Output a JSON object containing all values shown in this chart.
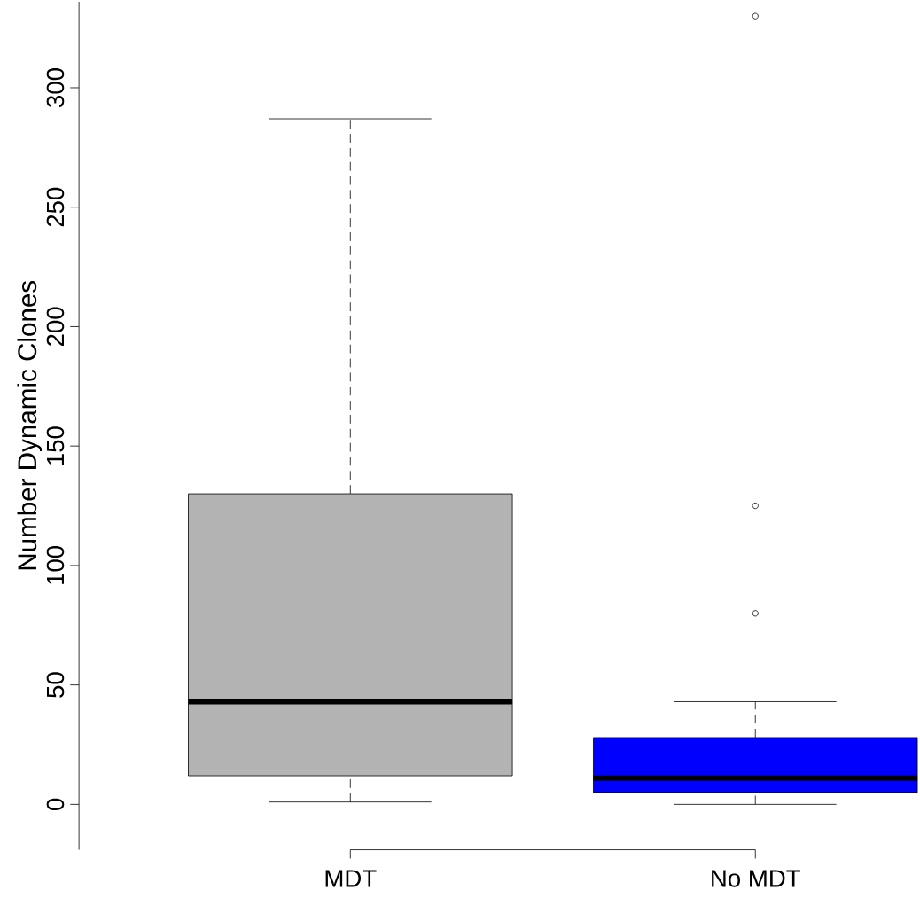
{
  "chart_data": {
    "type": "box",
    "ylabel": "Number Dynamic Clones",
    "categories": [
      "MDT",
      "No MDT"
    ],
    "boxes": [
      {
        "low": 1,
        "q1": 12,
        "median": 43,
        "q3": 130,
        "high": 287
      },
      {
        "low": 0,
        "q1": 5,
        "median": 11,
        "q3": 28,
        "high": 43,
        "outliers": [
          80,
          125,
          330
        ]
      }
    ],
    "colors": [
      "#b3b3b3",
      "#0000ff"
    ],
    "ylim": [
      -19,
      336
    ],
    "yticks": [
      0,
      50,
      100,
      150,
      200,
      250,
      300
    ],
    "grid": false,
    "marker": "circle"
  }
}
